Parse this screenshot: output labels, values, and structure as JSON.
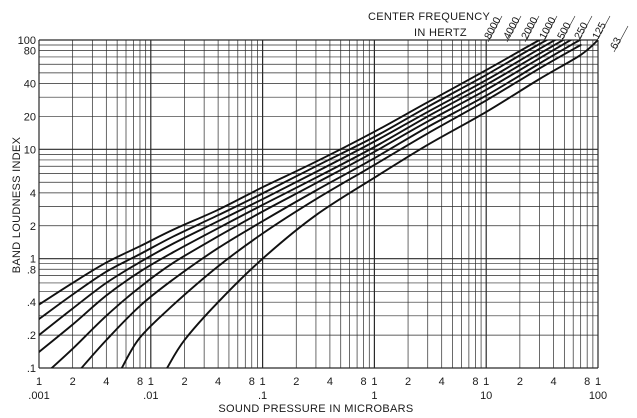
{
  "chart_data": {
    "type": "line",
    "xscale": "log",
    "yscale": "log",
    "xlim": [
      0.001,
      100
    ],
    "ylim": [
      0.1,
      100
    ],
    "grid": true,
    "xlabel": "SOUND PRESSURE IN MICROBARS",
    "ylabel": "BAND LOUDNESS INDEX",
    "legend_title_line1": "CENTER FREQUENCY",
    "legend_title_line2": "IN HERTZ",
    "x_ticks": [
      {
        "v": 0.001,
        "top": "1",
        "bottom": ".001"
      },
      {
        "v": 0.002,
        "top": "2"
      },
      {
        "v": 0.004,
        "top": "4"
      },
      {
        "v": 0.008,
        "top": "8"
      },
      {
        "v": 0.01,
        "top": "1",
        "bottom": ".01"
      },
      {
        "v": 0.02,
        "top": "2"
      },
      {
        "v": 0.04,
        "top": "4"
      },
      {
        "v": 0.08,
        "top": "8"
      },
      {
        "v": 0.1,
        "top": "1",
        "bottom": ".1"
      },
      {
        "v": 0.2,
        "top": "2"
      },
      {
        "v": 0.4,
        "top": "4"
      },
      {
        "v": 0.8,
        "top": "8"
      },
      {
        "v": 1,
        "top": "1",
        "bottom": "1"
      },
      {
        "v": 2,
        "top": "2"
      },
      {
        "v": 4,
        "top": "4"
      },
      {
        "v": 8,
        "top": "8"
      },
      {
        "v": 10,
        "top": "1",
        "bottom": "10"
      },
      {
        "v": 20,
        "top": "2"
      },
      {
        "v": 40,
        "top": "4"
      },
      {
        "v": 80,
        "top": "8"
      },
      {
        "v": 100,
        "top": "1",
        "bottom": "100"
      }
    ],
    "y_ticks": [
      {
        "v": 100,
        "label": "100"
      },
      {
        "v": 80,
        "label": "80"
      },
      {
        "v": 40,
        "label": "40"
      },
      {
        "v": 20,
        "label": "20"
      },
      {
        "v": 10,
        "label": "10"
      },
      {
        "v": 4,
        "label": "4"
      },
      {
        "v": 2,
        "label": "2"
      },
      {
        "v": 1,
        "label": "1"
      },
      {
        "v": 0.8,
        "label": ".8"
      },
      {
        "v": 0.4,
        "label": ".4"
      },
      {
        "v": 0.2,
        "label": ".2"
      },
      {
        "v": 0.1,
        "label": ".1"
      }
    ],
    "series": [
      {
        "name": "8000",
        "x": [
          0.001,
          0.002,
          0.004,
          0.008,
          0.016,
          0.04,
          0.1,
          0.3,
          1,
          3,
          10,
          30,
          70
        ],
        "y": [
          0.38,
          0.6,
          0.92,
          1.3,
          1.85,
          2.8,
          4.5,
          7.7,
          14.5,
          27,
          53,
          100,
          155
        ]
      },
      {
        "name": "4000",
        "x": [
          0.001,
          0.002,
          0.004,
          0.008,
          0.016,
          0.04,
          0.1,
          0.3,
          1,
          3,
          10,
          30,
          70
        ],
        "y": [
          0.28,
          0.47,
          0.76,
          1.1,
          1.6,
          2.5,
          3.95,
          7,
          13,
          24.5,
          48,
          92,
          145
        ]
      },
      {
        "name": "2000",
        "x": [
          0.001,
          0.002,
          0.004,
          0.008,
          0.016,
          0.04,
          0.1,
          0.3,
          1,
          3,
          10,
          30,
          70
        ],
        "y": [
          0.2,
          0.35,
          0.6,
          0.93,
          1.38,
          2.2,
          3.5,
          6.2,
          11.8,
          22,
          43,
          83,
          135
        ]
      },
      {
        "name": "1000",
        "x": [
          0.001,
          0.002,
          0.004,
          0.008,
          0.016,
          0.04,
          0.1,
          0.3,
          1,
          3,
          10,
          30,
          70
        ],
        "y": [
          0.14,
          0.25,
          0.46,
          0.76,
          1.15,
          1.9,
          3.1,
          5.5,
          10.5,
          20,
          39,
          75,
          124
        ]
      },
      {
        "name": "500",
        "x": [
          0.0013,
          0.002,
          0.004,
          0.008,
          0.016,
          0.04,
          0.1,
          0.3,
          1,
          3,
          10,
          30,
          70
        ],
        "y": [
          0.1,
          0.15,
          0.3,
          0.55,
          0.92,
          1.6,
          2.7,
          4.9,
          9.5,
          18,
          35,
          68,
          113
        ]
      },
      {
        "name": "250",
        "x": [
          0.0024,
          0.004,
          0.008,
          0.016,
          0.04,
          0.1,
          0.3,
          1,
          3,
          10,
          30,
          70
        ],
        "y": [
          0.1,
          0.18,
          0.37,
          0.65,
          1.25,
          2.2,
          4.2,
          8.3,
          16,
          31,
          61,
          101
        ]
      },
      {
        "name": "125",
        "x": [
          0.0055,
          0.008,
          0.016,
          0.04,
          0.1,
          0.3,
          1,
          3,
          10,
          30,
          70
        ],
        "y": [
          0.1,
          0.19,
          0.38,
          0.85,
          1.7,
          3.5,
          7.2,
          14,
          28,
          55,
          90
        ]
      },
      {
        "name": "63",
        "x": [
          0.014,
          0.02,
          0.04,
          0.1,
          0.3,
          1,
          3,
          10,
          30,
          70,
          100
        ],
        "y": [
          0.1,
          0.18,
          0.4,
          1.0,
          2.5,
          5.5,
          11,
          22,
          44,
          73,
          100
        ]
      }
    ]
  }
}
